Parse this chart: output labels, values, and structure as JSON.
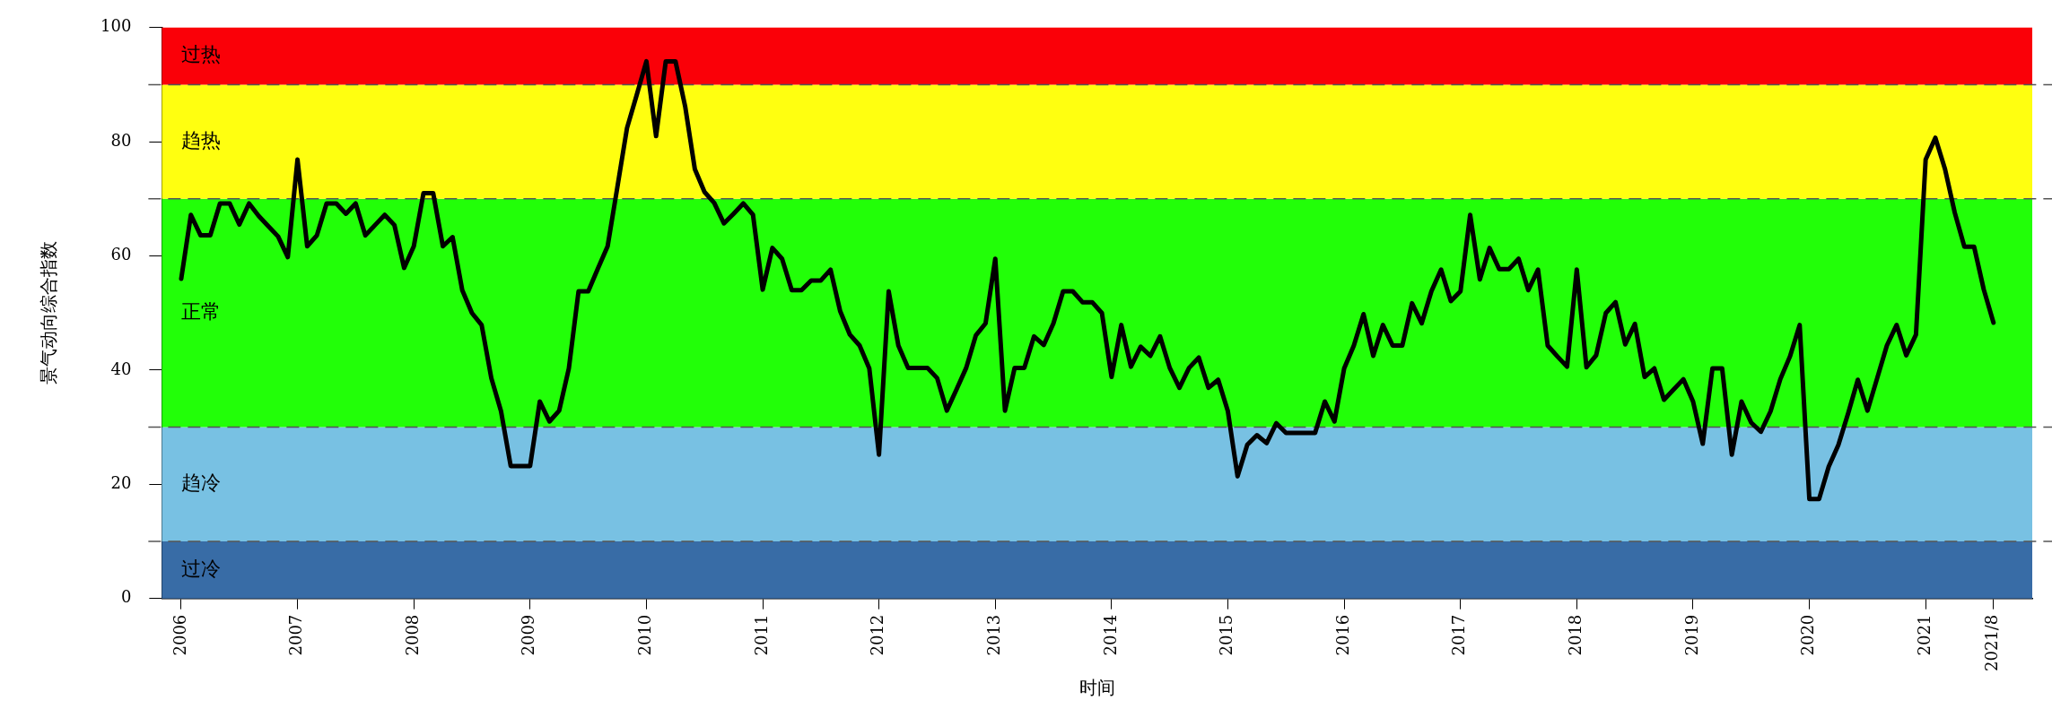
{
  "chart_data": {
    "type": "line",
    "xlabel": "时间",
    "ylabel": "景气动向综合指数",
    "x": [
      "2006-01",
      "2006-02",
      "2006-03",
      "2006-04",
      "2006-05",
      "2006-06",
      "2006-07",
      "2006-08",
      "2006-09",
      "2006-10",
      "2006-11",
      "2006-12",
      "2007-01",
      "2007-02",
      "2007-03",
      "2007-04",
      "2007-05",
      "2007-06",
      "2007-07",
      "2007-08",
      "2007-09",
      "2007-10",
      "2007-11",
      "2007-12",
      "2008-01",
      "2008-02",
      "2008-03",
      "2008-04",
      "2008-05",
      "2008-06",
      "2008-07",
      "2008-08",
      "2008-09",
      "2008-10",
      "2008-11",
      "2008-12",
      "2009-01",
      "2009-02",
      "2009-03",
      "2009-04",
      "2009-05",
      "2009-06",
      "2009-07",
      "2009-08",
      "2009-09",
      "2009-10",
      "2009-11",
      "2009-12",
      "2010-01",
      "2010-02",
      "2010-03",
      "2010-04",
      "2010-05",
      "2010-06",
      "2010-07",
      "2010-08",
      "2010-09",
      "2010-10",
      "2010-11",
      "2010-12",
      "2011-01",
      "2011-02",
      "2011-03",
      "2011-04",
      "2011-05",
      "2011-06",
      "2011-07",
      "2011-08",
      "2011-09",
      "2011-10",
      "2011-11",
      "2011-12",
      "2012-01",
      "2012-02",
      "2012-03",
      "2012-04",
      "2012-05",
      "2012-06",
      "2012-07",
      "2012-08",
      "2012-09",
      "2012-10",
      "2012-11",
      "2012-12",
      "2013-01",
      "2013-02",
      "2013-03",
      "2013-04",
      "2013-05",
      "2013-06",
      "2013-07",
      "2013-08",
      "2013-09",
      "2013-10",
      "2013-11",
      "2013-12",
      "2014-01",
      "2014-02",
      "2014-03",
      "2014-04",
      "2014-05",
      "2014-06",
      "2014-07",
      "2014-08",
      "2014-09",
      "2014-10",
      "2014-11",
      "2014-12",
      "2015-01",
      "2015-02",
      "2015-03",
      "2015-04",
      "2015-05",
      "2015-06",
      "2015-07",
      "2015-08",
      "2015-09",
      "2015-10",
      "2015-11",
      "2015-12",
      "2016-01",
      "2016-02",
      "2016-03",
      "2016-04",
      "2016-05",
      "2016-06",
      "2016-07",
      "2016-08",
      "2016-09",
      "2016-10",
      "2016-11",
      "2016-12",
      "2017-01",
      "2017-02",
      "2017-03",
      "2017-04",
      "2017-05",
      "2017-06",
      "2017-07",
      "2017-08",
      "2017-09",
      "2017-10",
      "2017-11",
      "2017-12",
      "2018-01",
      "2018-02",
      "2018-03",
      "2018-04",
      "2018-05",
      "2018-06",
      "2018-07",
      "2018-08",
      "2018-09",
      "2018-10",
      "2018-11",
      "2018-12",
      "2019-01",
      "2019-02",
      "2019-03",
      "2019-04",
      "2019-05",
      "2019-06",
      "2019-07",
      "2019-08",
      "2019-09",
      "2019-10",
      "2019-11",
      "2019-12",
      "2020-01",
      "2020-02",
      "2020-03",
      "2020-04",
      "2020-05",
      "2020-06",
      "2020-07",
      "2020-08",
      "2020-09",
      "2020-10",
      "2020-11",
      "2020-12",
      "2021-01",
      "2021-02",
      "2021-03",
      "2021-04",
      "2021-05",
      "2021-06",
      "2021-07",
      "2021-08"
    ],
    "series": [
      {
        "color": "#000000",
        "values": [
          56.0,
          67.2,
          63.6,
          63.6,
          69.2,
          69.2,
          65.5,
          69.2,
          67.0,
          65.2,
          63.4,
          59.8,
          76.9,
          61.7,
          63.6,
          69.2,
          69.2,
          67.4,
          69.2,
          63.6,
          65.4,
          67.2,
          65.4,
          57.9,
          61.7,
          71.0,
          71.0,
          61.7,
          63.3,
          54.0,
          50.0,
          47.9,
          38.6,
          32.8,
          23.2,
          23.2,
          23.2,
          34.5,
          31.0,
          32.9,
          40.3,
          53.8,
          53.8,
          57.8,
          61.7,
          72.0,
          82.4,
          88.2,
          94.1,
          81.0,
          94.1,
          94.1,
          86.2,
          75.2,
          71.2,
          69.3,
          65.7,
          67.4,
          69.2,
          67.2,
          54.1,
          61.4,
          59.5,
          54.0,
          54.0,
          55.7,
          55.7,
          57.6,
          50.3,
          46.2,
          44.3,
          40.3,
          25.2,
          53.8,
          44.3,
          40.4,
          40.4,
          40.4,
          38.6,
          32.9,
          36.6,
          40.4,
          46.1,
          48.2,
          59.5,
          32.9,
          40.4,
          40.4,
          45.9,
          44.4,
          48.2,
          53.8,
          53.8,
          51.9,
          51.9,
          50.0,
          38.8,
          47.9,
          40.6,
          44.1,
          42.5,
          45.9,
          40.4,
          36.9,
          40.4,
          42.2,
          36.9,
          38.3,
          32.8,
          21.4,
          26.9,
          28.6,
          27.2,
          30.7,
          29.0,
          29.0,
          29.0,
          29.0,
          34.5,
          31.0,
          40.3,
          44.3,
          49.8,
          42.5,
          47.9,
          44.3,
          44.3,
          51.7,
          48.2,
          53.8,
          57.6,
          52.1,
          53.8,
          67.2,
          55.9,
          61.4,
          57.7,
          57.7,
          59.5,
          54.0,
          57.6,
          44.3,
          42.4,
          40.6,
          57.6,
          40.5,
          42.6,
          50.0,
          51.9,
          44.5,
          48.1,
          38.8,
          40.3,
          34.8,
          36.6,
          38.4,
          34.5,
          27.1,
          40.3,
          40.3,
          25.2,
          34.5,
          30.8,
          29.2,
          32.8,
          38.4,
          42.4,
          47.9,
          17.4,
          17.4,
          23.1,
          26.9,
          32.4,
          38.3,
          32.9,
          38.6,
          44.3,
          47.9,
          42.6,
          46.2,
          76.9,
          80.7,
          75.2,
          67.6,
          61.6,
          61.6,
          54.1,
          48.3
        ]
      }
    ],
    "xlim": [
      "2005-11",
      "2021-12"
    ],
    "xticks": [
      "2006",
      "2007",
      "2008",
      "2009",
      "2010",
      "2011",
      "2012",
      "2013",
      "2014",
      "2015",
      "2016",
      "2017",
      "2018",
      "2019",
      "2020",
      "2021",
      {
        "value": "2021-08",
        "label": "2021/8"
      }
    ],
    "ylim": [
      0,
      100
    ],
    "yticks": [
      0,
      20,
      40,
      60,
      80,
      100
    ],
    "bands": [
      {
        "axis": "y",
        "from": 0,
        "to": 10,
        "label": "过冷",
        "color": "#386ca6"
      },
      {
        "axis": "y",
        "from": 10,
        "to": 30,
        "label": "趋冷",
        "color": "#78c1e3"
      },
      {
        "axis": "y",
        "from": 30,
        "to": 70,
        "label": "正常",
        "color": "#22ff08"
      },
      {
        "axis": "y",
        "from": 70,
        "to": 90,
        "label": "趋热",
        "color": "#ffff10"
      },
      {
        "axis": "y",
        "from": 90,
        "to": 100,
        "label": "过热",
        "color": "#fa0008"
      }
    ],
    "ref_lines": [
      {
        "axis": "y",
        "value": 10,
        "line_style": "dashed",
        "color": "#555555"
      },
      {
        "axis": "y",
        "value": 30,
        "line_style": "dashed",
        "color": "#555555"
      },
      {
        "axis": "y",
        "value": 70,
        "line_style": "dashed",
        "color": "#555555"
      },
      {
        "axis": "y",
        "value": 90,
        "line_style": "dashed",
        "color": "#555555"
      }
    ],
    "grid": false,
    "legend": false,
    "marker": "none",
    "line_style": "solid"
  }
}
